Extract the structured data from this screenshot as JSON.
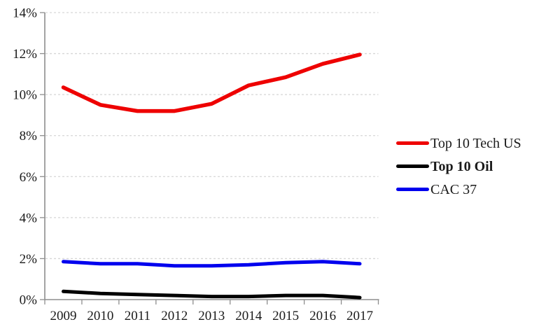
{
  "chart_data": {
    "type": "line",
    "title": "",
    "xlabel": "",
    "ylabel": "",
    "categories": [
      "2009",
      "2010",
      "2011",
      "2012",
      "2013",
      "2014",
      "2015",
      "2016",
      "2017"
    ],
    "series": [
      {
        "name": "Top 10 Tech US",
        "color": "#ee0000",
        "line_width": 5.5,
        "legend_bold": false,
        "values": [
          10.35,
          9.5,
          9.2,
          9.2,
          9.55,
          10.45,
          10.85,
          11.5,
          11.95
        ]
      },
      {
        "name": "Top 10 Oil",
        "color": "#000000",
        "line_width": 5,
        "legend_bold": true,
        "values": [
          0.4,
          0.3,
          0.25,
          0.2,
          0.15,
          0.15,
          0.2,
          0.2,
          0.1
        ]
      },
      {
        "name": "CAC 37",
        "color": "#0000ee",
        "line_width": 5,
        "legend_bold": false,
        "values": [
          1.85,
          1.75,
          1.75,
          1.65,
          1.65,
          1.7,
          1.8,
          1.85,
          1.75
        ]
      }
    ],
    "ylim": [
      0,
      14
    ],
    "ytick_step": 2,
    "ytick_labels": [
      "0%",
      "2%",
      "4%",
      "6%",
      "8%",
      "10%",
      "12%",
      "14%"
    ],
    "grid": true,
    "gridline_style": "dashed",
    "legend_position": "right"
  },
  "colors": {
    "grid": "#d6d6d6",
    "axis": "#8e8e8e",
    "text": "#1a1a1a",
    "background": "#ffffff"
  }
}
